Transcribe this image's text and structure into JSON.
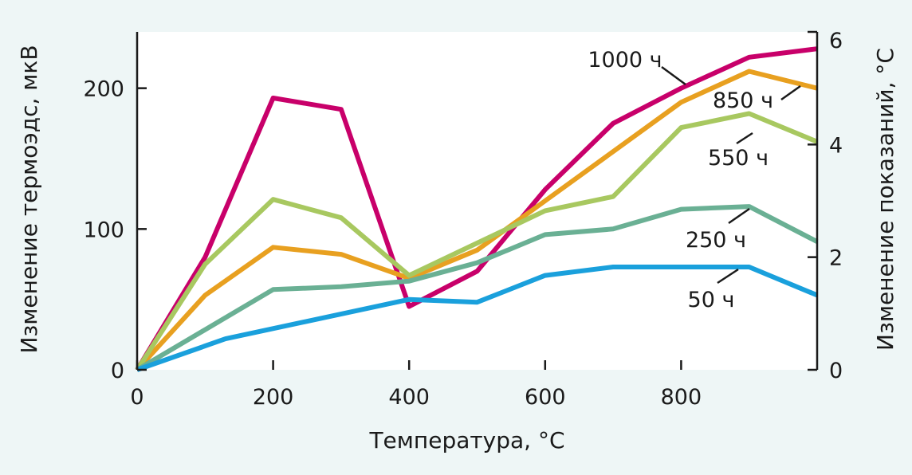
{
  "chart_data": {
    "type": "line",
    "xlabel": "Температура, °C",
    "ylabel": "Изменение термоэдс, мкВ",
    "y2label": "Изменение показаний, °C",
    "xlim": [
      0,
      1000
    ],
    "ylim": [
      0,
      240
    ],
    "y2lim": [
      0,
      6
    ],
    "grid": false,
    "x_ticks": [
      0,
      200,
      400,
      600,
      800
    ],
    "y_ticks": [
      0,
      100,
      200
    ],
    "y2_ticks": [
      0,
      2,
      4,
      6
    ],
    "series": [
      {
        "name": "1000 ч",
        "color": "#c8006a",
        "x": [
          0,
          100,
          200,
          300,
          400,
          500,
          600,
          700,
          800,
          900,
          1000
        ],
        "values": [
          0,
          80,
          193,
          185,
          45,
          70,
          128,
          175,
          200,
          222,
          228
        ]
      },
      {
        "name": "850 ч",
        "color": "#e8a020",
        "x": [
          0,
          100,
          200,
          300,
          400,
          500,
          600,
          700,
          800,
          900,
          1000
        ],
        "values": [
          0,
          53,
          87,
          82,
          65,
          85,
          120,
          155,
          190,
          212,
          200
        ]
      },
      {
        "name": "550 ч",
        "color": "#a8c860",
        "x": [
          0,
          100,
          200,
          300,
          400,
          500,
          600,
          700,
          800,
          900,
          1000
        ],
        "values": [
          0,
          75,
          121,
          108,
          67,
          90,
          113,
          123,
          172,
          182,
          162
        ]
      },
      {
        "name": "250 ч",
        "color": "#6ab094",
        "x": [
          0,
          200,
          300,
          400,
          500,
          600,
          700,
          800,
          900,
          1000
        ],
        "values": [
          0,
          57,
          59,
          63,
          76,
          96,
          100,
          114,
          116,
          91
        ]
      },
      {
        "name": "50 ч",
        "color": "#1aa0dc",
        "x": [
          0,
          130,
          400,
          500,
          600,
          700,
          800,
          900,
          1000
        ],
        "values": [
          0,
          22,
          50,
          48,
          67,
          73,
          73,
          73,
          53
        ]
      }
    ]
  }
}
